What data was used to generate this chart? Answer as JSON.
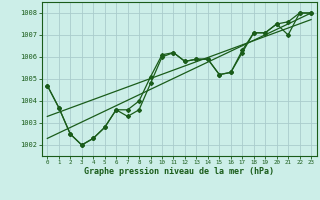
{
  "xlabel": "Graphe pression niveau de la mer (hPa)",
  "ylim": [
    1001.5,
    1008.5
  ],
  "xlim": [
    -0.5,
    23.5
  ],
  "yticks": [
    1002,
    1003,
    1004,
    1005,
    1006,
    1007,
    1008
  ],
  "xticks": [
    0,
    1,
    2,
    3,
    4,
    5,
    6,
    7,
    8,
    9,
    10,
    11,
    12,
    13,
    14,
    15,
    16,
    17,
    18,
    19,
    20,
    21,
    22,
    23
  ],
  "background_color": "#cceee8",
  "line_color": "#1a5c1a",
  "grid_color": "#aacccc",
  "series1": [
    1004.7,
    1003.7,
    1002.5,
    1002.0,
    1002.3,
    1002.8,
    1003.6,
    1003.6,
    1004.0,
    1005.1,
    1006.1,
    1006.2,
    1005.8,
    1005.9,
    1005.9,
    1005.2,
    1005.3,
    1006.3,
    1007.1,
    1007.1,
    1007.5,
    1007.6,
    1008.0,
    1008.0
  ],
  "series2": [
    1004.7,
    1003.7,
    1002.5,
    1002.0,
    1002.3,
    1002.8,
    1003.6,
    1003.3,
    1003.6,
    1004.8,
    1006.0,
    1006.2,
    1005.8,
    1005.9,
    1005.9,
    1005.2,
    1005.3,
    1006.2,
    1007.1,
    1007.1,
    1007.5,
    1007.0,
    1008.0,
    1008.0
  ],
  "trend1_x": [
    0,
    23
  ],
  "trend1_y": [
    1002.3,
    1008.0
  ],
  "trend2_x": [
    0,
    23
  ],
  "trend2_y": [
    1003.3,
    1007.7
  ],
  "xlabel_color": "#1a5c1a",
  "xlabel_fontsize": 6.0
}
